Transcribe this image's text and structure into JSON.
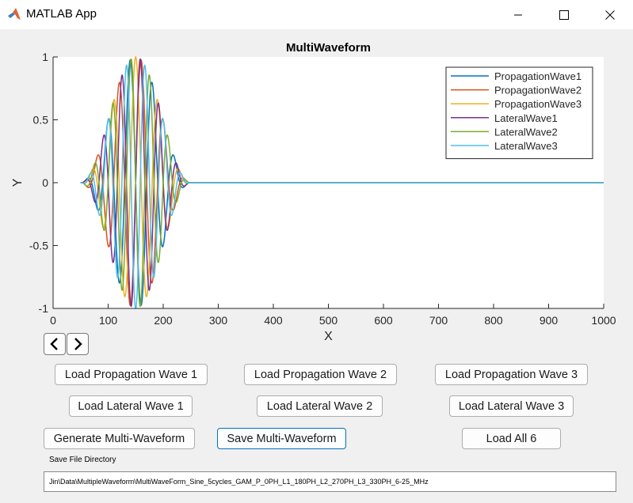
{
  "window": {
    "title": "MATLAB App"
  },
  "icons": {
    "app": "matlab-logo-icon",
    "minimize": "minimize-icon",
    "maximize": "maximize-icon",
    "close": "close-icon",
    "prev": "chevron-left-icon",
    "next": "chevron-right-icon"
  },
  "chart_data": {
    "type": "line",
    "title": "MultiWaveform",
    "xlabel": "X",
    "ylabel": "Y",
    "xlim": [
      0,
      1000
    ],
    "ylim": [
      -1,
      1
    ],
    "xticks": [
      "0",
      "100",
      "200",
      "300",
      "400",
      "500",
      "600",
      "700",
      "800",
      "900",
      "1000"
    ],
    "yticks": [
      "1",
      "0.5",
      "0",
      "-0.5",
      "-1"
    ],
    "legend_position": "top-right",
    "grid": false,
    "series": [
      {
        "name": "PropagationWave1",
        "color": "#0072bd",
        "phase_deg": 0,
        "cycles": 5,
        "x_start": 50,
        "x_end": 250,
        "x_max": 1000
      },
      {
        "name": "PropagationWave2",
        "color": "#d95319",
        "phase_deg": 180,
        "cycles": 5,
        "x_start": 50,
        "x_end": 250,
        "x_max": 1000
      },
      {
        "name": "PropagationWave3",
        "color": "#edb120",
        "phase_deg": 270,
        "cycles": 5,
        "x_start": 50,
        "x_end": 250,
        "x_max": 1000
      },
      {
        "name": "LateralWave1",
        "color": "#7e2f8e",
        "phase_deg": 0,
        "cycles": 6,
        "x_start": 50,
        "x_end": 250,
        "x_max": 1000
      },
      {
        "name": "LateralWave2",
        "color": "#77ac30",
        "phase_deg": 180,
        "cycles": 6,
        "x_start": 50,
        "x_end": 250,
        "x_max": 1000
      },
      {
        "name": "LateralWave3",
        "color": "#4dbeee",
        "phase_deg": 270,
        "cycles": 6,
        "x_start": 50,
        "x_end": 250,
        "x_max": 1000
      }
    ]
  },
  "buttons": {
    "load_prop1": "Load Propagation Wave 1",
    "load_prop2": "Load Propagation Wave 2",
    "load_prop3": "Load Propagation Wave 3",
    "load_lat1": "Load Lateral Wave 1",
    "load_lat2": "Load Lateral Wave 2",
    "load_lat3": "Load Lateral Wave 3",
    "generate": "Generate Multi-Waveform",
    "save": "Save Multi-Waveform",
    "load_all": "Load All 6"
  },
  "save_dir": {
    "label": "Save File Directory",
    "value": "Jin\\Data\\MultipleWaveform\\MultiWaveForm_Sine_5cycles_GAM_P_0PH_L1_180PH_L2_270PH_L3_330PH_6-25_MHz"
  }
}
